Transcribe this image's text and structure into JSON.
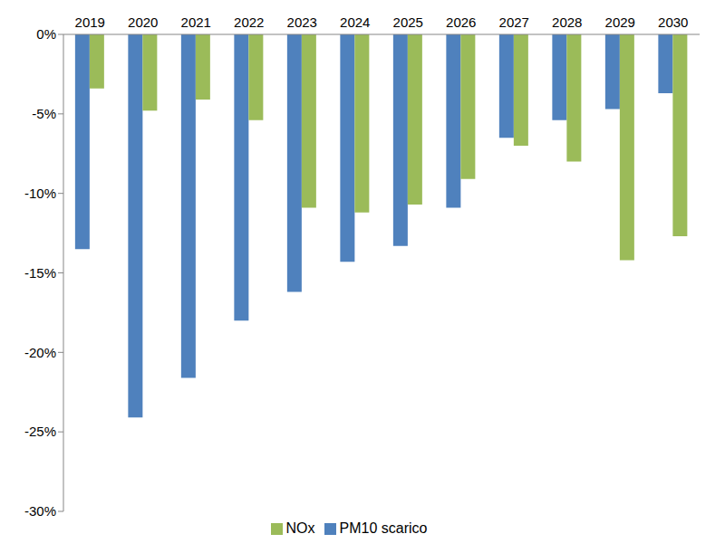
{
  "chart_data": {
    "type": "bar",
    "categories": [
      "2019",
      "2020",
      "2021",
      "2022",
      "2023",
      "2024",
      "2025",
      "2026",
      "2027",
      "2028",
      "2029",
      "2030"
    ],
    "series": [
      {
        "name": "PM10 scarico",
        "color": "#4f81bd",
        "values": [
          -13.5,
          -24.1,
          -21.6,
          -18.0,
          -16.2,
          -14.3,
          -13.3,
          -10.9,
          -6.5,
          -5.4,
          -4.7,
          -3.7
        ]
      },
      {
        "name": "NOx",
        "color": "#9bbb59",
        "values": [
          -3.4,
          -4.8,
          -4.1,
          -5.4,
          -10.9,
          -11.2,
          -10.7,
          -9.1,
          -7.0,
          -8.0,
          -14.2,
          -12.7
        ]
      }
    ],
    "ylim": [
      -30,
      0
    ],
    "yticks": [
      {
        "value": 0,
        "label": "0%"
      },
      {
        "value": -5,
        "label": "-5%"
      },
      {
        "value": -10,
        "label": "-10%"
      },
      {
        "value": -15,
        "label": "-15%"
      },
      {
        "value": -20,
        "label": "-20%"
      },
      {
        "value": -25,
        "label": "-25%"
      },
      {
        "value": -30,
        "label": "-30%"
      }
    ],
    "grid": false,
    "legend": "bottom"
  }
}
